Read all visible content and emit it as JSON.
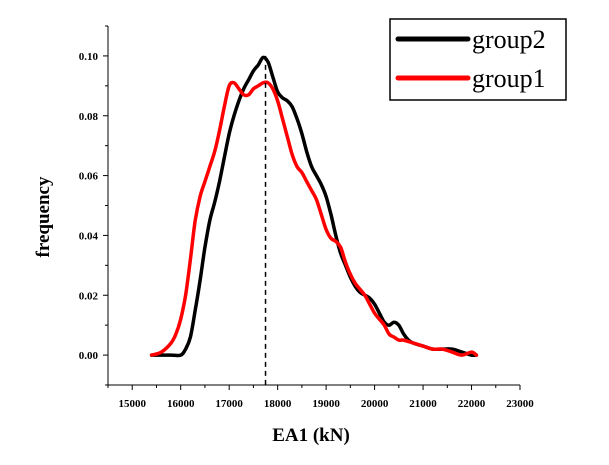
{
  "chart_data": {
    "type": "line",
    "xlabel": "EA1 (kN)",
    "ylabel": "frequency",
    "xlim": [
      14500,
      23000
    ],
    "ylim": [
      -0.01,
      0.11
    ],
    "xticks": [
      15000,
      16000,
      17000,
      18000,
      19000,
      20000,
      21000,
      22000,
      23000
    ],
    "yticks": [
      0.0,
      0.02,
      0.04,
      0.06,
      0.08,
      0.1
    ],
    "ytick_labels": [
      "0.00",
      "0.02",
      "0.04",
      "0.06",
      "0.08",
      "0.10"
    ],
    "grid": false,
    "legend": "top-right",
    "reference_line": {
      "x": 17750,
      "style": "dashed",
      "color": "#000000"
    },
    "series": [
      {
        "name": "group2",
        "color": "#000000",
        "x": [
          15400,
          15800,
          16000,
          16100,
          16200,
          16300,
          16400,
          16500,
          16600,
          16700,
          16800,
          16900,
          17000,
          17100,
          17200,
          17300,
          17400,
          17500,
          17600,
          17700,
          17800,
          17900,
          18000,
          18100,
          18200,
          18300,
          18400,
          18500,
          18600,
          18700,
          18800,
          18900,
          19000,
          19100,
          19200,
          19300,
          19400,
          19500,
          19600,
          19700,
          19800,
          19900,
          20000,
          20100,
          20200,
          20300,
          20400,
          20500,
          20600,
          20700,
          20800,
          21000,
          21200,
          21400,
          21600,
          21800,
          22000,
          22100
        ],
        "y": [
          0.0,
          0.0,
          0.0,
          0.002,
          0.006,
          0.015,
          0.025,
          0.036,
          0.045,
          0.051,
          0.058,
          0.066,
          0.074,
          0.08,
          0.085,
          0.089,
          0.092,
          0.095,
          0.097,
          0.0995,
          0.098,
          0.093,
          0.088,
          0.086,
          0.085,
          0.083,
          0.079,
          0.074,
          0.068,
          0.063,
          0.06,
          0.057,
          0.053,
          0.047,
          0.04,
          0.034,
          0.03,
          0.026,
          0.023,
          0.021,
          0.02,
          0.019,
          0.017,
          0.014,
          0.011,
          0.01,
          0.011,
          0.01,
          0.007,
          0.005,
          0.004,
          0.003,
          0.002,
          0.002,
          0.002,
          0.001,
          0.0,
          0.0
        ]
      },
      {
        "name": "group1",
        "color": "#ff0000",
        "x": [
          15400,
          15600,
          15800,
          15900,
          16000,
          16100,
          16200,
          16300,
          16400,
          16500,
          16600,
          16700,
          16800,
          16900,
          17000,
          17100,
          17200,
          17300,
          17400,
          17500,
          17600,
          17700,
          17800,
          17900,
          18000,
          18100,
          18200,
          18300,
          18400,
          18500,
          18600,
          18700,
          18800,
          18900,
          19000,
          19100,
          19200,
          19300,
          19400,
          19500,
          19600,
          19700,
          19800,
          19900,
          20000,
          20100,
          20200,
          20300,
          20400,
          20500,
          20600,
          20800,
          21000,
          21200,
          21400,
          21600,
          21800,
          22000,
          22100
        ],
        "y": [
          0.0,
          0.001,
          0.004,
          0.007,
          0.012,
          0.02,
          0.032,
          0.045,
          0.053,
          0.058,
          0.063,
          0.068,
          0.075,
          0.083,
          0.09,
          0.091,
          0.089,
          0.087,
          0.087,
          0.089,
          0.09,
          0.091,
          0.091,
          0.089,
          0.085,
          0.079,
          0.073,
          0.067,
          0.063,
          0.061,
          0.058,
          0.055,
          0.052,
          0.047,
          0.042,
          0.039,
          0.038,
          0.036,
          0.031,
          0.027,
          0.024,
          0.022,
          0.02,
          0.017,
          0.014,
          0.012,
          0.01,
          0.007,
          0.006,
          0.005,
          0.005,
          0.004,
          0.003,
          0.002,
          0.002,
          0.001,
          0.0,
          0.001,
          0.0
        ]
      }
    ]
  }
}
